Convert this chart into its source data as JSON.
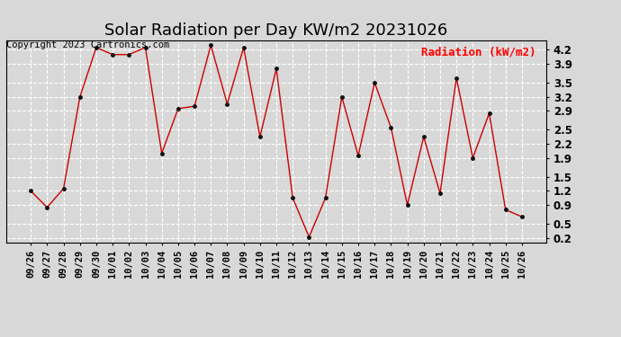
{
  "title": "Solar Radiation per Day KW/m2 20231026",
  "copyright": "Copyright 2023 Cartronics.com",
  "legend_label": "Radiation (kW/m2)",
  "dates": [
    "09/26",
    "09/27",
    "09/28",
    "09/29",
    "09/30",
    "10/01",
    "10/02",
    "10/03",
    "10/04",
    "10/05",
    "10/06",
    "10/07",
    "10/08",
    "10/09",
    "10/10",
    "10/11",
    "10/12",
    "10/13",
    "10/14",
    "10/15",
    "10/16",
    "10/17",
    "10/18",
    "10/19",
    "10/20",
    "10/21",
    "10/22",
    "10/23",
    "10/24",
    "10/25",
    "10/26"
  ],
  "values": [
    1.2,
    0.85,
    1.25,
    3.2,
    4.25,
    4.1,
    4.1,
    4.25,
    2.0,
    2.95,
    3.0,
    4.3,
    3.05,
    4.25,
    2.35,
    3.8,
    1.05,
    0.22,
    1.05,
    3.2,
    1.95,
    3.5,
    2.55,
    0.9,
    2.35,
    1.15,
    3.6,
    1.9,
    2.85,
    0.8,
    0.65
  ],
  "line_color": "#cc0000",
  "marker_color": "#111111",
  "ylim": [
    0.1,
    4.4
  ],
  "yticks": [
    0.2,
    0.5,
    0.9,
    1.2,
    1.5,
    1.9,
    2.2,
    2.5,
    2.9,
    3.2,
    3.5,
    3.9,
    4.2
  ],
  "background_color": "#d8d8d8",
  "grid_color": "#ffffff",
  "title_fontsize": 13,
  "copyright_fontsize": 7.5,
  "legend_fontsize": 9,
  "tick_fontsize": 7.5,
  "ylabel_color": "red",
  "title_color": "black"
}
